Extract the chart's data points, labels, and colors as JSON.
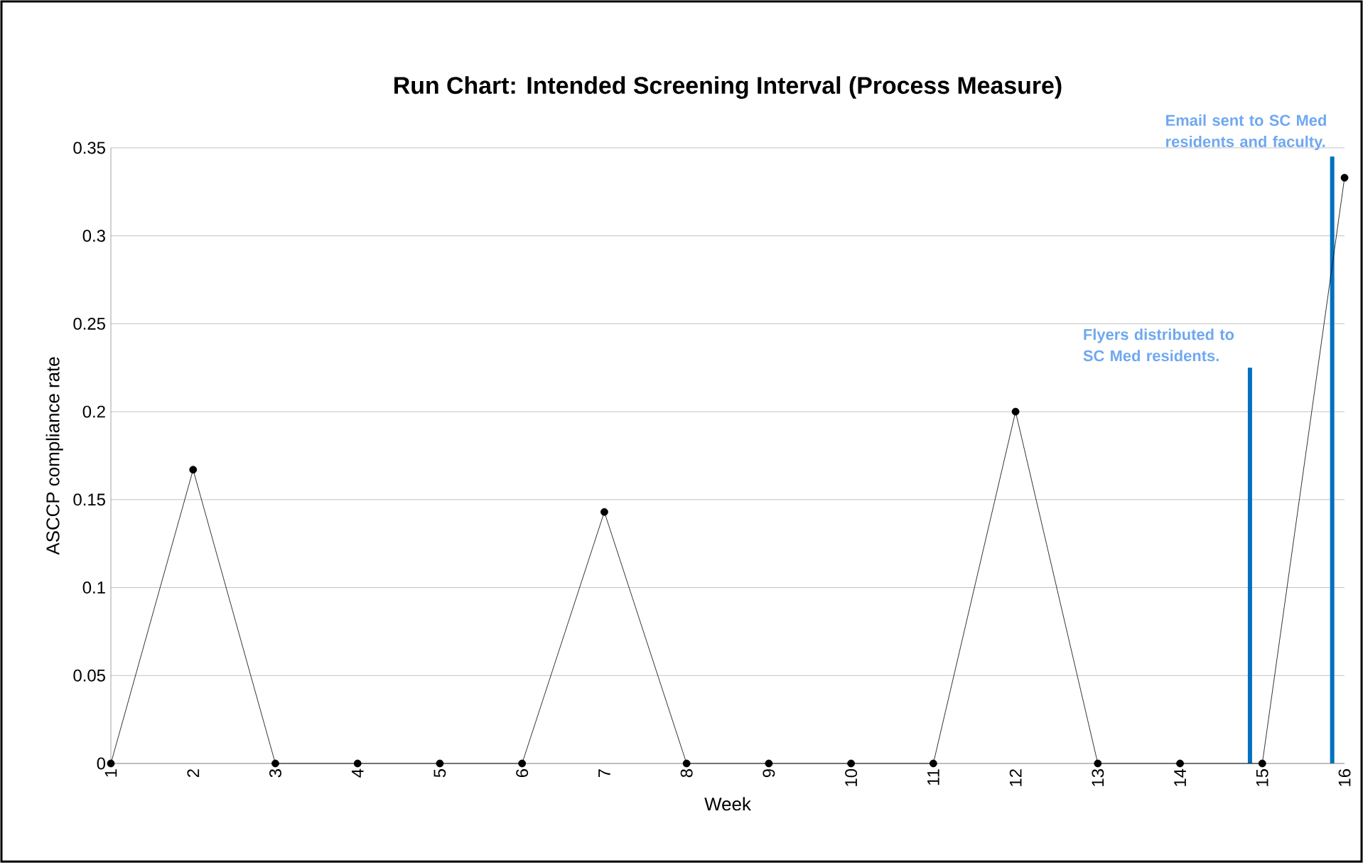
{
  "chart_data": {
    "type": "line",
    "title": "Run Chart: Intended Screening Interval (Process Measure)",
    "xlabel": "Week",
    "ylabel": "ASCCP compliance rate",
    "x": [
      1,
      2,
      3,
      4,
      5,
      6,
      7,
      8,
      9,
      10,
      11,
      12,
      13,
      14,
      15,
      16
    ],
    "series": [
      {
        "color": "#000000",
        "values": [
          0,
          0.167,
          0,
          0,
          0,
          0,
          0.143,
          0,
          0,
          0,
          0,
          0.2,
          0,
          0,
          0,
          0.333
        ]
      }
    ],
    "xlim": [
      1,
      16
    ],
    "xticks": [
      1,
      2,
      3,
      4,
      5,
      6,
      7,
      8,
      9,
      10,
      11,
      12,
      13,
      14,
      15,
      16
    ],
    "ylim": [
      0,
      0.35
    ],
    "yticks": [
      0,
      0.05,
      0.1,
      0.15,
      0.2,
      0.25,
      0.3,
      0.35
    ],
    "grid": "y",
    "marker": "circle",
    "line_style": "solid",
    "ref_lines": [
      {
        "axis": "x",
        "value": 14.85,
        "color": "#0070c0"
      },
      {
        "axis": "x",
        "value": 15.85,
        "color": "#0070c0"
      }
    ],
    "annotations": [
      {
        "text": "Flyers distributed to SC Med residents.",
        "x": 14.85,
        "y": 0.225
      },
      {
        "text": "Email sent to SC Med residents and faculty.",
        "x": 15.85,
        "y": 0.345
      }
    ]
  }
}
